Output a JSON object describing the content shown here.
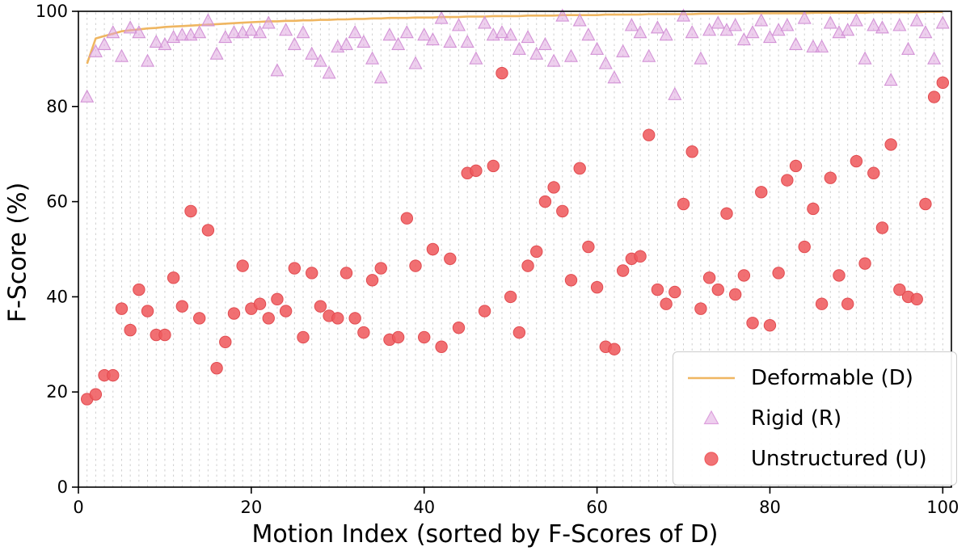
{
  "chart_data": {
    "type": "scatter",
    "title": "",
    "xlabel": "Motion Index (sorted by F-Scores of D)",
    "ylabel": "F-Score (%)",
    "xlim": [
      0,
      101
    ],
    "ylim": [
      0,
      100
    ],
    "x_ticks": [
      0,
      20,
      40,
      60,
      80,
      100
    ],
    "y_ticks": [
      0,
      20,
      40,
      60,
      80,
      100
    ],
    "grid": "vertical dashed gridline at every motion index 1-100",
    "grid_color": "#cfcfcf",
    "legend_position": "lower right",
    "x_values": "sequential motion indices 1 to 100 (one per value)",
    "series": [
      {
        "name": "Deformable (D)",
        "marker": "line",
        "color": "#efb661",
        "edge_color": "#efb661",
        "values": [
          89.0,
          94.3,
          94.8,
          95.3,
          95.8,
          96.0,
          96.2,
          96.4,
          96.5,
          96.7,
          96.8,
          96.9,
          97.0,
          97.1,
          97.2,
          97.3,
          97.4,
          97.5,
          97.6,
          97.7,
          97.8,
          97.9,
          97.9,
          98.0,
          98.0,
          98.1,
          98.1,
          98.2,
          98.2,
          98.3,
          98.3,
          98.4,
          98.4,
          98.5,
          98.5,
          98.6,
          98.6,
          98.6,
          98.7,
          98.7,
          98.7,
          98.8,
          98.8,
          98.8,
          98.9,
          98.9,
          98.9,
          99.0,
          99.0,
          99.0,
          99.0,
          99.1,
          99.1,
          99.1,
          99.1,
          99.2,
          99.2,
          99.2,
          99.2,
          99.2,
          99.3,
          99.3,
          99.3,
          99.3,
          99.3,
          99.4,
          99.4,
          99.4,
          99.4,
          99.4,
          99.4,
          99.5,
          99.5,
          99.5,
          99.5,
          99.5,
          99.5,
          99.6,
          99.6,
          99.6,
          99.6,
          99.6,
          99.6,
          99.6,
          99.7,
          99.7,
          99.7,
          99.7,
          99.7,
          99.7,
          99.7,
          99.8,
          99.8,
          99.8,
          99.8,
          99.8,
          99.8,
          99.9,
          99.9,
          99.9
        ]
      },
      {
        "name": "Rigid (R)",
        "marker": "triangle",
        "color": "#dda0dd",
        "edge_color": "#d393d6",
        "values": [
          82.0,
          91.5,
          93.0,
          95.5,
          90.5,
          96.5,
          95.5,
          89.5,
          93.5,
          93.0,
          94.5,
          95.0,
          95.0,
          95.5,
          98.0,
          91.0,
          94.5,
          95.5,
          95.5,
          96.0,
          95.5,
          97.5,
          87.5,
          96.0,
          93.0,
          95.5,
          91.0,
          89.5,
          87.0,
          92.5,
          93.0,
          95.5,
          93.5,
          90.0,
          86.0,
          95.0,
          93.0,
          95.5,
          89.0,
          95.0,
          94.0,
          98.5,
          93.5,
          97.0,
          93.5,
          90.0,
          97.5,
          95.0,
          95.5,
          95.0,
          92.0,
          94.5,
          91.0,
          93.0,
          89.5,
          99.0,
          90.5,
          98.0,
          95.0,
          92.0,
          89.0,
          86.0,
          91.5,
          97.0,
          95.5,
          90.5,
          96.5,
          95.0,
          82.5,
          99.0,
          95.5,
          90.0,
          96.0,
          97.5,
          96.0,
          97.0,
          94.0,
          95.5,
          98.0,
          94.5,
          96.0,
          97.0,
          93.0,
          98.5,
          92.5,
          92.5,
          97.5,
          95.5,
          96.0,
          98.0,
          90.0,
          97.0,
          96.5,
          85.5,
          97.0,
          92.0,
          98.0,
          95.5,
          90.0,
          97.5
        ]
      },
      {
        "name": "Unstructured (U)",
        "marker": "circle",
        "color": "#ef5b5e",
        "edge_color": "#e14b50",
        "values": [
          18.5,
          19.5,
          23.5,
          23.5,
          37.5,
          33.0,
          41.5,
          37.0,
          32.0,
          32.0,
          44.0,
          38.0,
          58.0,
          35.5,
          54.0,
          25.0,
          30.5,
          36.5,
          46.5,
          37.5,
          38.5,
          35.5,
          39.5,
          37.0,
          46.0,
          31.5,
          45.0,
          38.0,
          36.0,
          35.5,
          45.0,
          35.5,
          32.5,
          43.5,
          46.0,
          31.0,
          31.5,
          56.5,
          46.5,
          31.5,
          50.0,
          29.5,
          48.0,
          33.5,
          66.0,
          66.5,
          37.0,
          67.5,
          87.0,
          40.0,
          32.5,
          46.5,
          49.5,
          60.0,
          63.0,
          58.0,
          43.5,
          67.0,
          50.5,
          42.0,
          29.5,
          29.0,
          45.5,
          48.0,
          48.5,
          74.0,
          41.5,
          38.5,
          41.0,
          59.5,
          70.5,
          37.5,
          44.0,
          41.5,
          57.5,
          40.5,
          44.5,
          34.5,
          62.0,
          34.0,
          45.0,
          64.5,
          67.5,
          50.5,
          58.5,
          38.5,
          65.0,
          44.5,
          38.5,
          68.5,
          47.0,
          66.0,
          54.5,
          72.0,
          41.5,
          40.0,
          39.5,
          59.5,
          82.0,
          85.0
        ]
      }
    ]
  },
  "legend": {
    "items": [
      {
        "label": "Deformable (D)",
        "marker": "line",
        "color": "#efb661"
      },
      {
        "label": "Rigid (R)",
        "marker": "triangle",
        "color": "#dda0dd"
      },
      {
        "label": "Unstructured (U)",
        "marker": "circle",
        "color": "#ef5b5e"
      }
    ]
  },
  "axes": {
    "xlabel": "Motion Index (sorted by F-Scores of D)",
    "ylabel": "F-Score (%)"
  }
}
